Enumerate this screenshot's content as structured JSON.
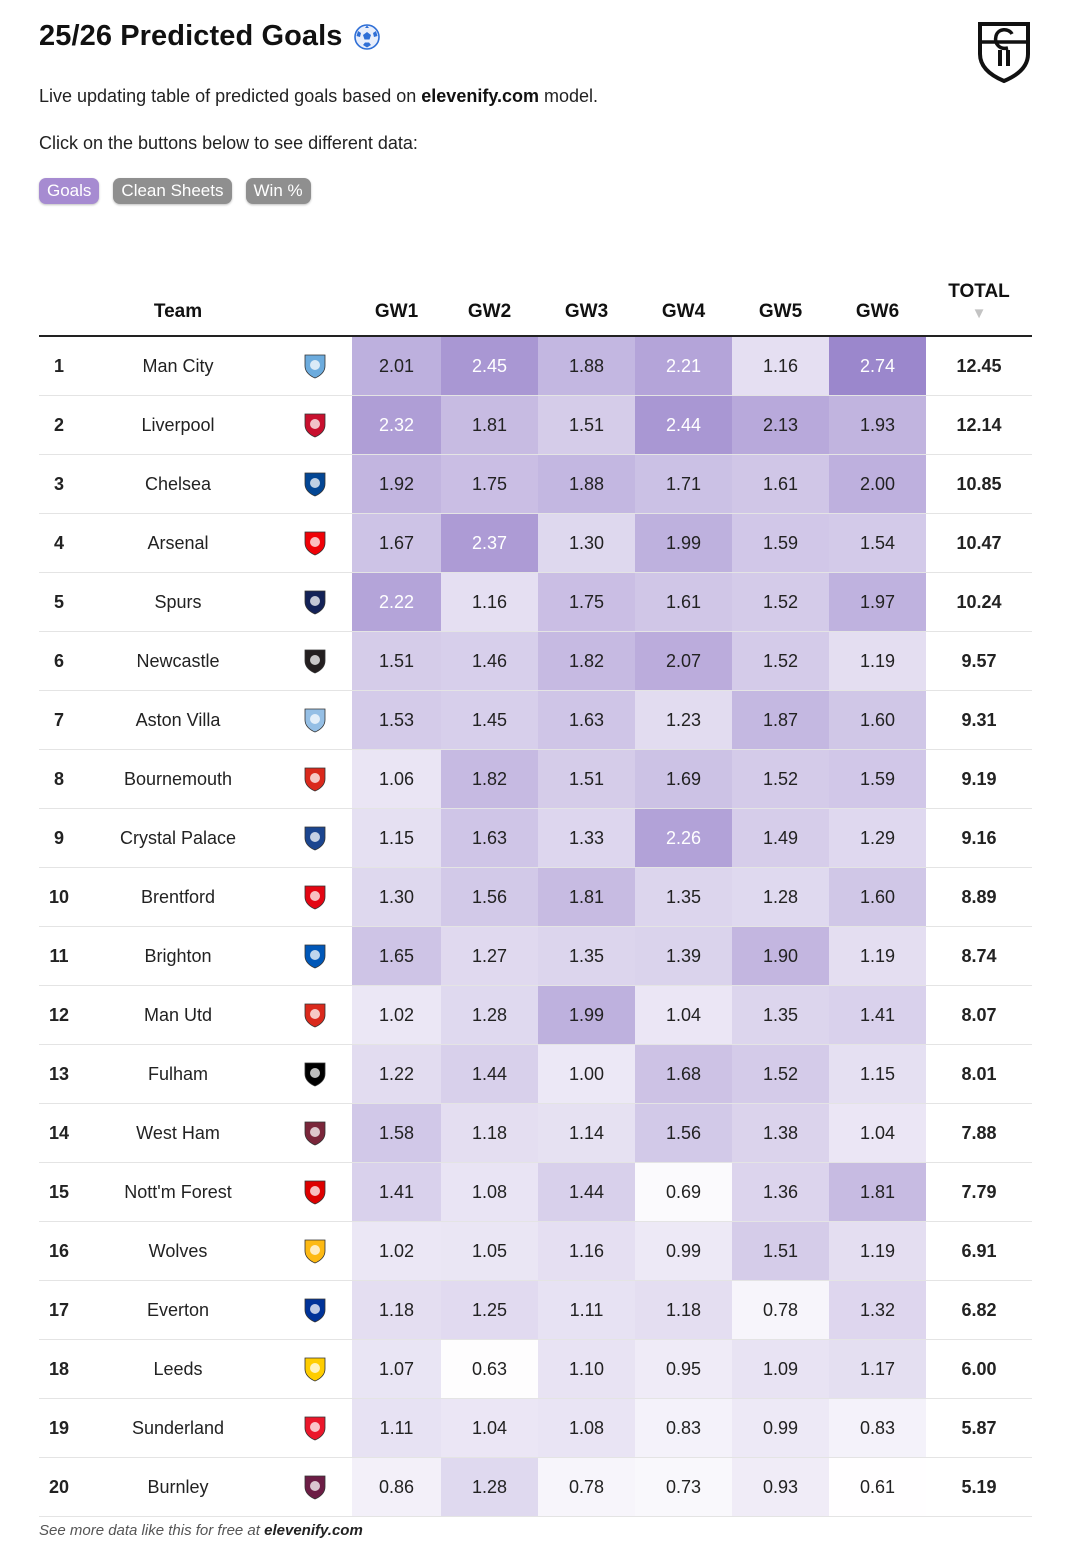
{
  "header": {
    "title": "25/26 Predicted Goals",
    "title_icon": "soccer-ball-icon",
    "logo_icon": "elevenify-shield-icon",
    "description_prefix": "Live updating table of predicted goals based on ",
    "description_site": "elevenify.com",
    "description_suffix": " model.",
    "instruction": "Click on the buttons below to see different data:"
  },
  "buttons": [
    {
      "label": "Goals",
      "active": true
    },
    {
      "label": "Clean Sheets",
      "active": false
    },
    {
      "label": "Win %",
      "active": false
    }
  ],
  "table": {
    "columns": {
      "team": "Team",
      "gw": [
        "GW1",
        "GW2",
        "GW3",
        "GW4",
        "GW5",
        "GW6"
      ],
      "total": "TOTAL",
      "total_sort_icon": "▼"
    },
    "rows": [
      {
        "rank": "1",
        "team": "Man City",
        "crest": "man-city-crest-icon",
        "gw": [
          "2.01",
          "2.45",
          "1.88",
          "2.21",
          "1.16",
          "2.74"
        ],
        "total": "12.45",
        "color": "#6cabdd"
      },
      {
        "rank": "2",
        "team": "Liverpool",
        "crest": "liverpool-crest-icon",
        "gw": [
          "2.32",
          "1.81",
          "1.51",
          "2.44",
          "2.13",
          "1.93"
        ],
        "total": "12.14",
        "color": "#c8102e"
      },
      {
        "rank": "3",
        "team": "Chelsea",
        "crest": "chelsea-crest-icon",
        "gw": [
          "1.92",
          "1.75",
          "1.88",
          "1.71",
          "1.61",
          "2.00"
        ],
        "total": "10.85",
        "color": "#034694"
      },
      {
        "rank": "4",
        "team": "Arsenal",
        "crest": "arsenal-crest-icon",
        "gw": [
          "1.67",
          "2.37",
          "1.30",
          "1.99",
          "1.59",
          "1.54"
        ],
        "total": "10.47",
        "color": "#ef0107"
      },
      {
        "rank": "5",
        "team": "Spurs",
        "crest": "spurs-crest-icon",
        "gw": [
          "2.22",
          "1.16",
          "1.75",
          "1.61",
          "1.52",
          "1.97"
        ],
        "total": "10.24",
        "color": "#132257"
      },
      {
        "rank": "6",
        "team": "Newcastle",
        "crest": "newcastle-crest-icon",
        "gw": [
          "1.51",
          "1.46",
          "1.82",
          "2.07",
          "1.52",
          "1.19"
        ],
        "total": "9.57",
        "color": "#241f20"
      },
      {
        "rank": "7",
        "team": "Aston Villa",
        "crest": "aston-villa-crest-icon",
        "gw": [
          "1.53",
          "1.45",
          "1.63",
          "1.23",
          "1.87",
          "1.60"
        ],
        "total": "9.31",
        "color": "#95bfe5"
      },
      {
        "rank": "8",
        "team": "Bournemouth",
        "crest": "bournemouth-crest-icon",
        "gw": [
          "1.06",
          "1.82",
          "1.51",
          "1.69",
          "1.52",
          "1.59"
        ],
        "total": "9.19",
        "color": "#da291c"
      },
      {
        "rank": "9",
        "team": "Crystal Palace",
        "crest": "crystal-palace-crest-icon",
        "gw": [
          "1.15",
          "1.63",
          "1.33",
          "2.26",
          "1.49",
          "1.29"
        ],
        "total": "9.16",
        "color": "#1b458f"
      },
      {
        "rank": "10",
        "team": "Brentford",
        "crest": "brentford-crest-icon",
        "gw": [
          "1.30",
          "1.56",
          "1.81",
          "1.35",
          "1.28",
          "1.60"
        ],
        "total": "8.89",
        "color": "#e30613"
      },
      {
        "rank": "11",
        "team": "Brighton",
        "crest": "brighton-crest-icon",
        "gw": [
          "1.65",
          "1.27",
          "1.35",
          "1.39",
          "1.90",
          "1.19"
        ],
        "total": "8.74",
        "color": "#0057b8"
      },
      {
        "rank": "12",
        "team": "Man Utd",
        "crest": "man-utd-crest-icon",
        "gw": [
          "1.02",
          "1.28",
          "1.99",
          "1.04",
          "1.35",
          "1.41"
        ],
        "total": "8.07",
        "color": "#da291c"
      },
      {
        "rank": "13",
        "team": "Fulham",
        "crest": "fulham-crest-icon",
        "gw": [
          "1.22",
          "1.44",
          "1.00",
          "1.68",
          "1.52",
          "1.15"
        ],
        "total": "8.01",
        "color": "#000000"
      },
      {
        "rank": "14",
        "team": "West Ham",
        "crest": "west-ham-crest-icon",
        "gw": [
          "1.58",
          "1.18",
          "1.14",
          "1.56",
          "1.38",
          "1.04"
        ],
        "total": "7.88",
        "color": "#7a263a"
      },
      {
        "rank": "15",
        "team": "Nott'm Forest",
        "crest": "nottm-forest-crest-icon",
        "gw": [
          "1.41",
          "1.08",
          "1.44",
          "0.69",
          "1.36",
          "1.81"
        ],
        "total": "7.79",
        "color": "#dd0000"
      },
      {
        "rank": "16",
        "team": "Wolves",
        "crest": "wolves-crest-icon",
        "gw": [
          "1.02",
          "1.05",
          "1.16",
          "0.99",
          "1.51",
          "1.19"
        ],
        "total": "6.91",
        "color": "#fdb913"
      },
      {
        "rank": "17",
        "team": "Everton",
        "crest": "everton-crest-icon",
        "gw": [
          "1.18",
          "1.25",
          "1.11",
          "1.18",
          "0.78",
          "1.32"
        ],
        "total": "6.82",
        "color": "#003399"
      },
      {
        "rank": "18",
        "team": "Leeds",
        "crest": "leeds-crest-icon",
        "gw": [
          "1.07",
          "0.63",
          "1.10",
          "0.95",
          "1.09",
          "1.17"
        ],
        "total": "6.00",
        "color": "#ffcd00"
      },
      {
        "rank": "19",
        "team": "Sunderland",
        "crest": "sunderland-crest-icon",
        "gw": [
          "1.11",
          "1.04",
          "1.08",
          "0.83",
          "0.99",
          "0.83"
        ],
        "total": "5.87",
        "color": "#eb172b"
      },
      {
        "rank": "20",
        "team": "Burnley",
        "crest": "burnley-crest-icon",
        "gw": [
          "0.86",
          "1.28",
          "0.78",
          "0.73",
          "0.93",
          "0.61"
        ],
        "total": "5.19",
        "color": "#6c1d45"
      }
    ]
  },
  "heat": {
    "min": 0.6,
    "max": 2.75,
    "low_color": "#ffffff",
    "high_color": "#9b86cc",
    "light_text": "#ffffff",
    "dark_text": "#222222"
  },
  "footer": {
    "prefix": "See more data like this for free at ",
    "site": "elevenify.com"
  }
}
